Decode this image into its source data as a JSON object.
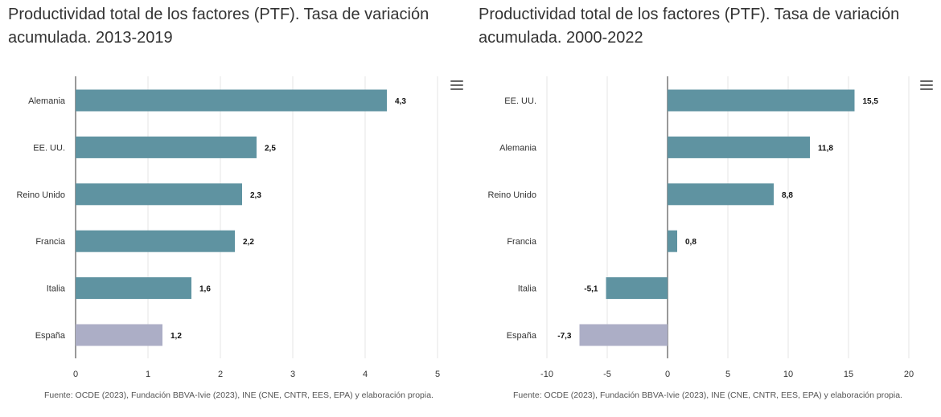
{
  "colors": {
    "bar": "#5f93a1",
    "highlight": "#acaec6",
    "axis": "#333333",
    "grid": "#e6e6e6",
    "text": "#333333"
  },
  "icons": {
    "menu": "hamburger-menu-icon"
  },
  "chart_data": [
    {
      "type": "bar",
      "orientation": "horizontal",
      "title": "Productividad total de los factores (PTF). Tasa de variación acumulada. 2013-2019",
      "categories": [
        "Alemania",
        "EE. UU.",
        "Reino Unido",
        "Francia",
        "Italia",
        "España"
      ],
      "values": [
        4.3,
        2.5,
        2.3,
        2.2,
        1.6,
        1.2
      ],
      "data_labels": [
        "4,3",
        "2,5",
        "2,3",
        "2,2",
        "1,6",
        "1,2"
      ],
      "highlight": "España",
      "xlim": [
        0,
        5
      ],
      "xticks": [
        "0",
        "1",
        "2",
        "3",
        "4",
        "5"
      ],
      "grid": true,
      "source": "Fuente: OCDE (2023), Fundación BBVA-Ivie (2023), INE (CNE, CNTR, EES, EPA) y elaboración propia."
    },
    {
      "type": "bar",
      "orientation": "horizontal",
      "title": "Productividad total de los factores (PTF). Tasa de variación acumulada. 2000-2022",
      "categories": [
        "EE. UU.",
        "Alemania",
        "Reino Unido",
        "Francia",
        "Italia",
        "España"
      ],
      "values": [
        15.5,
        11.8,
        8.8,
        0.8,
        -5.1,
        -7.3
      ],
      "data_labels": [
        "15,5",
        "11,8",
        "8,8",
        "0,8",
        "-5,1",
        "-7,3"
      ],
      "highlight": "España",
      "xlim": [
        -10,
        20
      ],
      "xticks": [
        "-10",
        "-5",
        "0",
        "5",
        "10",
        "15",
        "20"
      ],
      "grid": true,
      "source": "Fuente: OCDE (2023), Fundación BBVA-Ivie (2023), INE (CNE, CNTR, EES, EPA) y elaboración propia."
    }
  ]
}
